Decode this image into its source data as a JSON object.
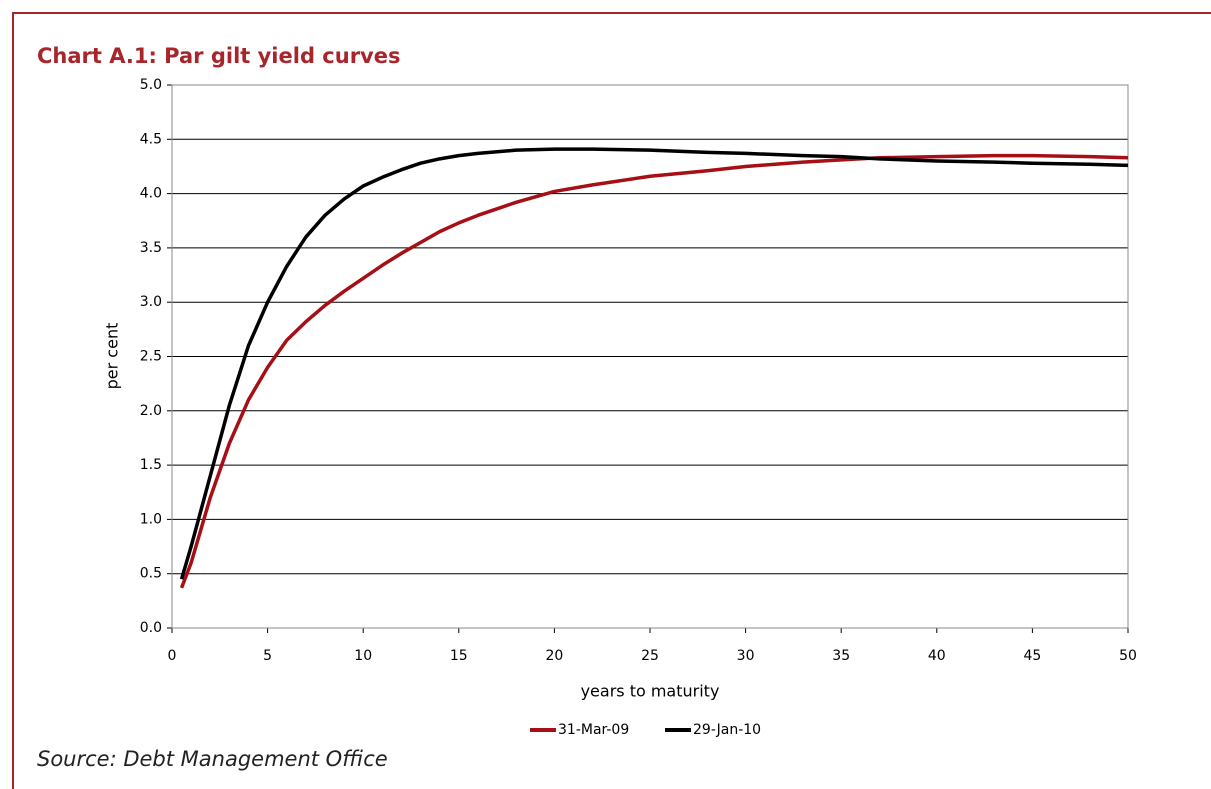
{
  "chart_data": {
    "type": "line",
    "title": "Chart A.1: Par gilt yield curves",
    "source": "Source: Debt Management Office",
    "x_label": "years to maturity",
    "y_label": "per cent",
    "x": [
      0.5,
      1,
      2,
      3,
      4,
      5,
      6,
      7,
      8,
      9,
      10,
      11,
      12,
      13,
      14,
      15,
      16,
      18,
      20,
      22,
      25,
      28,
      30,
      33,
      35,
      37,
      40,
      43,
      45,
      48,
      50
    ],
    "series": [
      {
        "name": "31-Mar-09",
        "color": "#a50f15",
        "values": [
          0.37,
          0.6,
          1.2,
          1.7,
          2.1,
          2.4,
          2.65,
          2.82,
          2.97,
          3.1,
          3.22,
          3.34,
          3.45,
          3.55,
          3.65,
          3.73,
          3.8,
          3.92,
          4.02,
          4.08,
          4.16,
          4.21,
          4.25,
          4.29,
          4.31,
          4.33,
          4.34,
          4.35,
          4.35,
          4.34,
          4.33
        ]
      },
      {
        "name": "29-Jan-10",
        "color": "#000000",
        "values": [
          0.45,
          0.75,
          1.4,
          2.05,
          2.6,
          3.0,
          3.33,
          3.6,
          3.8,
          3.95,
          4.07,
          4.15,
          4.22,
          4.28,
          4.32,
          4.35,
          4.37,
          4.4,
          4.41,
          4.41,
          4.4,
          4.38,
          4.37,
          4.35,
          4.34,
          4.32,
          4.3,
          4.29,
          4.28,
          4.27,
          4.26
        ]
      }
    ],
    "xlim": [
      0,
      50
    ],
    "xticks": [
      0,
      5,
      10,
      15,
      20,
      25,
      30,
      35,
      40,
      45,
      50
    ],
    "ylim": [
      0,
      5
    ],
    "yticks": [
      {
        "value": 0,
        "label": "0.0"
      },
      0.5,
      {
        "value": 1,
        "label": "1.0"
      },
      1.5,
      {
        "value": 2,
        "label": "2.0"
      },
      2.5,
      {
        "value": 3,
        "label": "3.0"
      },
      3.5,
      {
        "value": 4,
        "label": "4.0"
      },
      4.5,
      {
        "value": 5,
        "label": "5.0"
      }
    ],
    "grid": true,
    "legend": "bottom"
  }
}
